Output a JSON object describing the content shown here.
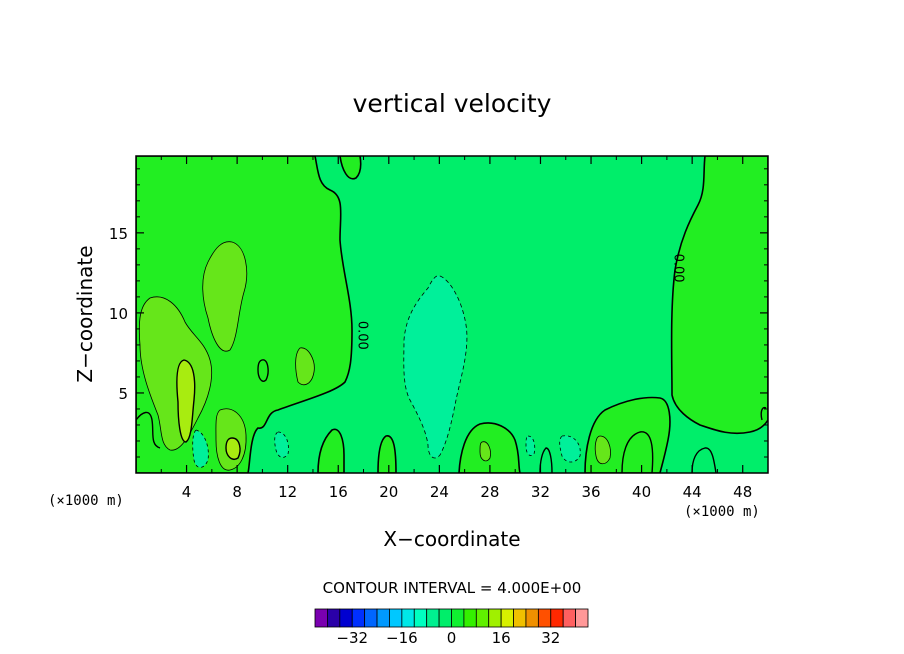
{
  "chart_data": {
    "type": "contour",
    "title": "vertical velocity",
    "xlabel": "X−coordinate",
    "ylabel": "Z−coordinate",
    "x_unit_left": "(×1000 m)",
    "x_unit_right": "(×1000 m)",
    "xlim": [
      0,
      50
    ],
    "ylim": [
      0,
      19.8
    ],
    "x_ticks": [
      4,
      8,
      12,
      16,
      20,
      24,
      28,
      32,
      36,
      40,
      44,
      48
    ],
    "x_tick_labels": [
      "4",
      "8",
      "12",
      "16",
      "20",
      "24",
      "28",
      "32",
      "36",
      "40",
      "44",
      "48"
    ],
    "y_ticks": [
      5,
      10,
      15
    ],
    "y_tick_labels": [
      "5",
      "10",
      "15"
    ],
    "contour_labels": [
      {
        "text": "0.00",
        "x": 17.6,
        "y": 8.6
      },
      {
        "text": "0.00",
        "x": 42.6,
        "y": 12.8
      }
    ],
    "contour_interval_text": "CONTOUR INTERVAL = 4.000E+00",
    "contour_interval": 4.0,
    "colorbar": {
      "levels": [
        -40,
        -36,
        -32,
        -28,
        -24,
        -20,
        -16,
        -12,
        -8,
        -4,
        0,
        4,
        8,
        12,
        16,
        20,
        24,
        28,
        32,
        36,
        40
      ],
      "colors": [
        "#7a00b0",
        "#2a00a8",
        "#0000d0",
        "#0030ff",
        "#0066ff",
        "#0099ff",
        "#00c8ff",
        "#00e8e8",
        "#00ffc0",
        "#00f090",
        "#00ee6a",
        "#10f030",
        "#34f000",
        "#60f000",
        "#a0f000",
        "#d8f000",
        "#f0c000",
        "#f09000",
        "#ff5000",
        "#ff2800",
        "#ff6060",
        "#ff9898"
      ],
      "labeled_values": [
        -32,
        -16,
        0,
        16,
        32
      ],
      "labels": [
        "−32",
        "−16",
        "0",
        "16",
        "32"
      ]
    },
    "background_field": {
      "value": -2,
      "color": "#00ee6a"
    },
    "regions": [
      {
        "level": 4,
        "color": "#22ee22",
        "x_range": [
          0,
          17
        ],
        "z_range": [
          0,
          19.8
        ]
      },
      {
        "level": 4,
        "color": "#22ee22",
        "x_range": [
          42.5,
          50
        ],
        "z_range": [
          0,
          19.8
        ]
      },
      {
        "level": 8,
        "color": "#66e61a",
        "center": [
          8.2,
          10.5
        ]
      },
      {
        "level": 8,
        "color": "#66e61a",
        "center": [
          3.1,
          7.2
        ]
      },
      {
        "level": 12,
        "color": "#a8ec10",
        "center": [
          4.0,
          4.2
        ]
      },
      {
        "level": -4,
        "color": "#00f09a",
        "center": [
          23.8,
          7.0
        ]
      }
    ]
  }
}
